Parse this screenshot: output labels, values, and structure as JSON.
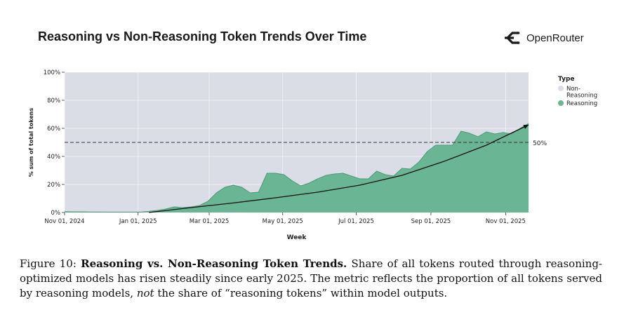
{
  "header": {
    "title": "Reasoning vs Non-Reasoning Token Trends Over Time",
    "brand": "OpenRouter"
  },
  "caption": {
    "label": "Figure 10:",
    "bold": "Reasoning vs. Non-Reasoning Token Trends.",
    "part1": "Share of all tokens routed through reasoning-optimized models has risen steadily since early 2025. The metric reflects the proportion of all tokens served by reasoning models,",
    "emph": "not",
    "part2": "the share of “reasoning tokens” within model outputs."
  },
  "colors": {
    "non_reasoning": "#dadde6",
    "reasoning": "#6ab593",
    "reasoning_line": "#4e9b78",
    "trend": "#111111"
  },
  "chart_data": {
    "type": "area",
    "xlabel": "Week",
    "ylabel": "% sum of total tokens",
    "ylim": [
      0,
      100
    ],
    "yticks": [
      "0%",
      "20%",
      "40%",
      "60%",
      "80%",
      "100%"
    ],
    "ytick_values": [
      0,
      20,
      40,
      60,
      80,
      100
    ],
    "xticks": [
      "Nov 01, 2024",
      "Jan 01, 2025",
      "Mar 01, 2025",
      "May 01, 2025",
      "Jul 01, 2025",
      "Sep 01, 2025",
      "Nov 01, 2025"
    ],
    "xtick_weeks": [
      0,
      8.714,
      17.143,
      25.857,
      34.571,
      43.429,
      52.286
    ],
    "reference_line": {
      "value": 50,
      "label": "50%",
      "style": "dashed"
    },
    "legend": {
      "title": "Type",
      "entries": [
        {
          "name": "Non-Reasoning",
          "lines": [
            "Non-",
            "Reasoning"
          ]
        },
        {
          "name": "Reasoning",
          "lines": [
            "Reasoning"
          ]
        }
      ]
    },
    "series": [
      {
        "name": "Reasoning",
        "points": [
          [
            0,
            0.6
          ],
          [
            1,
            0.5
          ],
          [
            2,
            0.5
          ],
          [
            3,
            0.4
          ],
          [
            4,
            0.4
          ],
          [
            5,
            0.3
          ],
          [
            6,
            0.3
          ],
          [
            7,
            0.3
          ],
          [
            8,
            0.3
          ],
          [
            9,
            0.3
          ],
          [
            10,
            0.8
          ],
          [
            11,
            1.5
          ],
          [
            12,
            2.5
          ],
          [
            13,
            4.0
          ],
          [
            14,
            3.5
          ],
          [
            15,
            4.0
          ],
          [
            16,
            5.0
          ],
          [
            17,
            8.0
          ],
          [
            18,
            14.0
          ],
          [
            19,
            18.0
          ],
          [
            20,
            19.5
          ],
          [
            21,
            18.0
          ],
          [
            22,
            14.0
          ],
          [
            23,
            14.5
          ],
          [
            24,
            28.0
          ],
          [
            25,
            28.0
          ],
          [
            26,
            27.0
          ],
          [
            27,
            22.5
          ],
          [
            28,
            19.0
          ],
          [
            29,
            21.0
          ],
          [
            30,
            24.0
          ],
          [
            31,
            26.5
          ],
          [
            32,
            27.5
          ],
          [
            33,
            28.0
          ],
          [
            34,
            26.0
          ],
          [
            35,
            24.0
          ],
          [
            36,
            24.0
          ],
          [
            37,
            29.5
          ],
          [
            38,
            27.0
          ],
          [
            39,
            26.0
          ],
          [
            40,
            31.5
          ],
          [
            41,
            31.0
          ],
          [
            42,
            36.0
          ],
          [
            43,
            43.5
          ],
          [
            44,
            48.0
          ],
          [
            45,
            48.0
          ],
          [
            46,
            48.0
          ],
          [
            47,
            58.0
          ],
          [
            48,
            56.5
          ],
          [
            49,
            54.0
          ],
          [
            50,
            57.5
          ],
          [
            51,
            56.0
          ],
          [
            52,
            57.0
          ],
          [
            53,
            56.0
          ],
          [
            54,
            60.0
          ],
          [
            55,
            63.5
          ]
        ]
      }
    ],
    "trend_line": {
      "points": [
        [
          10,
          0
        ],
        [
          15,
          3.5
        ],
        [
          20,
          6.8
        ],
        [
          25,
          10.5
        ],
        [
          30,
          14.5
        ],
        [
          35,
          19.5
        ],
        [
          40,
          26.5
        ],
        [
          45,
          36.5
        ],
        [
          50,
          48.0
        ],
        [
          55,
          62.5
        ]
      ]
    }
  }
}
